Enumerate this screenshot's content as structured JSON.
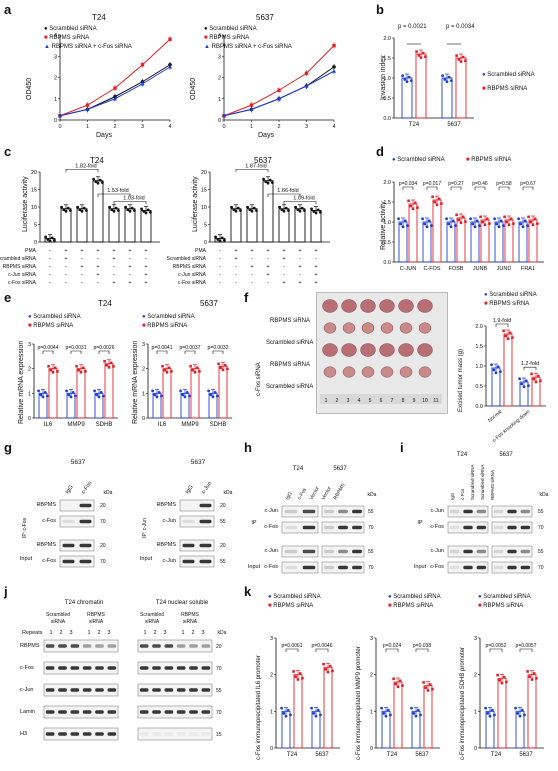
{
  "panels": {
    "a": {
      "letter": "a",
      "titles": [
        "T24",
        "5637"
      ],
      "legend": [
        "Scrambled siRNA",
        "RBPMS siRNA",
        "RBPMS siRNA + c-Fos siRNA"
      ],
      "ylabel": "OD450",
      "xlabel": "Days",
      "xticks": [
        "0",
        "1",
        "2",
        "3",
        "4"
      ],
      "yticks": [
        "0",
        "1",
        "2",
        "3",
        "4"
      ]
    },
    "b": {
      "letter": "b",
      "p_values": [
        "p = 0.0021",
        "p = 0.0034"
      ],
      "ylabel": "Invasion index",
      "categories": [
        "T24",
        "5637"
      ],
      "legend": [
        "Scrambled siRNA",
        "RBPMS siRNA"
      ],
      "yticks": [
        "0.0",
        "0.5",
        "1.0",
        "1.5",
        "2.0"
      ]
    },
    "c": {
      "letter": "c",
      "titles": [
        "T24",
        "5637"
      ],
      "ylabel": "Luciferase activity",
      "yticks": [
        "0",
        "5",
        "10",
        "15",
        "20"
      ],
      "folds_left": [
        "1.82-fold",
        "1.53-fold",
        "1.03-fold"
      ],
      "folds_right": [
        "1.87-fold",
        "1.66-fold",
        "1.09-fold"
      ],
      "row_labels": [
        "PMA",
        "Scrambled siRNA",
        "RBPMS siRNA",
        "c-Jun siRNA",
        "c-Fos siRNA"
      ]
    },
    "d": {
      "letter": "d",
      "legend": [
        "Scrambled siRNA",
        "RBPMS siRNA"
      ],
      "ylabel": "Relative activity",
      "categories": [
        "C-JUN",
        "C-FOS",
        "FOSB",
        "JUNB",
        "JUND",
        "FRA1"
      ],
      "p_values": [
        "p=0.034",
        "p=0.017",
        "p=0.27",
        "p=0.46",
        "p=0.58",
        "p=0.67"
      ],
      "yticks": [
        "0.0",
        "0.5",
        "1.0",
        "1.5",
        "2.0"
      ]
    },
    "e": {
      "letter": "e",
      "titles": [
        "T24",
        "5637"
      ],
      "legend": [
        "Scrambled siRNA",
        "RBPMS siRNA"
      ],
      "ylabel": "Relative mRNA expression",
      "categories": [
        "IL6",
        "MMP9",
        "SDHB"
      ],
      "p_left": [
        "p=0.0044",
        "p=0.0031",
        "p=0.0026"
      ],
      "p_right": [
        "p=0.0041",
        "p=0.0037",
        "p=0.0032"
      ],
      "yticks": [
        "0",
        "1",
        "2",
        "3"
      ]
    },
    "f": {
      "letter": "f",
      "row_labels": [
        "RBPMS siRNA",
        "Scrambled siRNA",
        "RBPMS siRNA",
        "Scrambled siRNA"
      ],
      "side_label": "c-Fos siRNA",
      "legend": [
        "Scrambled siRNA",
        "RBPMS siRNA"
      ],
      "ylabel": "Excised tumor mass (g)",
      "folds": [
        "1.9-fold",
        "1.2-fold"
      ],
      "categories": [
        "Normal",
        "c-Fos knocking down"
      ],
      "yticks": [
        "0.0",
        "0.5",
        "1.0",
        "1.5",
        "2.0"
      ],
      "ruler": [
        "1",
        "2",
        "3",
        "4",
        "5",
        "6",
        "7",
        "8",
        "9",
        "10",
        "11"
      ]
    },
    "g": {
      "letter": "g",
      "cell": [
        "5637",
        "5637"
      ],
      "ip_left": "IP: c-Fos",
      "ip_right": "IP: c-Jun",
      "lanes_left": [
        "IgG",
        "c-Fos"
      ],
      "lanes_right": [
        "IgG",
        "c-Jun"
      ],
      "kda": "kDa",
      "rows_left": [
        "RBPMS",
        "c-Fos",
        "RBPMS",
        "c-Fos"
      ],
      "rows_right": [
        "RBPMS",
        "c-Jun",
        "RBPMS",
        "c-Jun"
      ],
      "mw_left": [
        "20",
        "70",
        "20",
        "70"
      ],
      "mw_right": [
        "20",
        "55",
        "20",
        "55"
      ],
      "input": "Input"
    },
    "h": {
      "letter": "h",
      "cells": [
        "T24",
        "5637"
      ],
      "lanes": [
        "IgG",
        "c-Fos",
        "Vector",
        "Vector",
        "RBPMS"
      ],
      "kda": "kDa",
      "ip": "IP",
      "input": "Input",
      "rows": [
        "c-Jun",
        "c-Fos",
        "c-Jun",
        "c-Fos"
      ],
      "mw": [
        "55",
        "70",
        "55",
        "70"
      ]
    },
    "i": {
      "letter": "i",
      "cells": [
        "T24",
        "5637"
      ],
      "lanes": [
        "IgG",
        "c-Fos",
        "Scrambled siRNA",
        "Scrambled siRNA",
        "RBPMS siRNA"
      ],
      "kda": "kDa",
      "ip": "IP",
      "input": "Input",
      "rows": [
        "c-Jun",
        "c-Fos",
        "c-Jun",
        "c-Fos"
      ],
      "mw": [
        "55",
        "70",
        "55",
        "70"
      ]
    },
    "j": {
      "letter": "j",
      "titles": [
        "T24 chromatin",
        "T24 nuclear soluble"
      ],
      "groups": [
        "Scrambled siRNA",
        "RBPMS siRNA",
        "Scrambled siRNA",
        "RBPMS siRNA"
      ],
      "repeats": "Repeats",
      "repeat_nums": [
        "1",
        "2",
        "3"
      ],
      "rows": [
        "RBPMS",
        "c-Fos",
        "c-Jun",
        "Lamin",
        "H3"
      ],
      "mw": [
        "20",
        "70",
        "55",
        "70",
        "15"
      ],
      "kda": "kDa"
    },
    "k": {
      "letter": "k",
      "legend": [
        "Scrambled siRNA",
        "RBPMS siRNA"
      ],
      "ylabels": [
        "c-Fos immunoprecipitated IL6 promoter",
        "c-Fos immunoprecipitated MMP9 promoter",
        "c-Fos immunoprecipitated SDHB promoter"
      ],
      "categories": [
        "T24",
        "5637"
      ],
      "p1": [
        "p=0.0061",
        "p=0.0046"
      ],
      "p2": [
        "p=0.024",
        "p=0.038"
      ],
      "p3": [
        "p=0.0052",
        "p=0.0057"
      ],
      "yticks": [
        "0",
        "1",
        "2",
        "3"
      ]
    }
  },
  "colors": {
    "blue": "#1f3fd6",
    "red": "#e0232b",
    "black": "#111111"
  },
  "chart_data": [
    {
      "type": "line",
      "title": "T24",
      "xlabel": "Days",
      "ylabel": "OD450",
      "x": [
        0,
        1,
        2,
        3,
        4
      ],
      "ylim": [
        0,
        4
      ],
      "series": [
        {
          "name": "Scrambled siRNA",
          "values": [
            0.2,
            0.5,
            1.1,
            1.8,
            2.6
          ]
        },
        {
          "name": "RBPMS siRNA",
          "values": [
            0.2,
            0.7,
            1.5,
            2.6,
            3.8
          ]
        },
        {
          "name": "RBPMS siRNA + c-Fos siRNA",
          "values": [
            0.2,
            0.5,
            1.0,
            1.7,
            2.5
          ]
        }
      ]
    },
    {
      "type": "line",
      "title": "5637",
      "xlabel": "Days",
      "ylabel": "OD450",
      "x": [
        0,
        1,
        2,
        3,
        4
      ],
      "ylim": [
        0,
        4
      ],
      "series": [
        {
          "name": "Scrambled siRNA",
          "values": [
            0.2,
            0.5,
            1.0,
            1.6,
            2.5
          ]
        },
        {
          "name": "RBPMS siRNA",
          "values": [
            0.2,
            0.7,
            1.4,
            2.2,
            3.5
          ]
        },
        {
          "name": "RBPMS siRNA + c-Fos siRNA",
          "values": [
            0.2,
            0.5,
            1.0,
            1.6,
            2.3
          ]
        }
      ]
    },
    {
      "type": "bar",
      "ylabel": "Invasion index",
      "categories": [
        "T24",
        "5637"
      ],
      "ylim": [
        0,
        2
      ],
      "series": [
        {
          "name": "Scrambled siRNA",
          "values": [
            1.0,
            1.0
          ]
        },
        {
          "name": "RBPMS siRNA",
          "values": [
            1.6,
            1.5
          ]
        }
      ]
    },
    {
      "type": "bar",
      "title": "T24",
      "ylabel": "Luciferase activity",
      "ylim": [
        0,
        20
      ],
      "values": [
        1,
        9.5,
        9.5,
        17.5,
        9.5,
        9.5,
        9
      ]
    },
    {
      "type": "bar",
      "title": "5637",
      "ylabel": "Luciferase activity",
      "ylim": [
        0,
        20
      ],
      "values": [
        1,
        9.5,
        9.5,
        17.5,
        9.5,
        9.5,
        9
      ]
    },
    {
      "type": "bar",
      "ylabel": "Relative activity",
      "categories": [
        "C-JUN",
        "C-FOS",
        "FOSB",
        "JUNB",
        "JUND",
        "FRA1"
      ],
      "ylim": [
        0,
        2
      ],
      "series": [
        {
          "name": "Scrambled siRNA",
          "values": [
            1.0,
            1.0,
            1.0,
            1.0,
            1.0,
            1.0
          ]
        },
        {
          "name": "RBPMS siRNA",
          "values": [
            1.45,
            1.55,
            1.1,
            1.05,
            1.05,
            1.05
          ]
        }
      ]
    },
    {
      "type": "bar",
      "title": "T24",
      "ylabel": "Relative mRNA expression",
      "categories": [
        "IL6",
        "MMP9",
        "SDHB"
      ],
      "ylim": [
        0,
        3
      ],
      "series": [
        {
          "name": "Scrambled siRNA",
          "values": [
            1.0,
            1.0,
            1.0
          ]
        },
        {
          "name": "RBPMS siRNA",
          "values": [
            2.0,
            2.0,
            2.2
          ]
        }
      ]
    },
    {
      "type": "bar",
      "title": "5637",
      "ylabel": "Relative mRNA expression",
      "categories": [
        "IL6",
        "MMP9",
        "SDHB"
      ],
      "ylim": [
        0,
        3
      ],
      "series": [
        {
          "name": "Scrambled siRNA",
          "values": [
            1.0,
            1.0,
            1.0
          ]
        },
        {
          "name": "RBPMS siRNA",
          "values": [
            2.0,
            2.0,
            2.1
          ]
        }
      ]
    },
    {
      "type": "bar",
      "ylabel": "Excised tumor mass (g)",
      "categories": [
        "Normal",
        "c-Fos knocking down"
      ],
      "ylim": [
        0,
        2
      ],
      "series": [
        {
          "name": "Scrambled siRNA",
          "values": [
            0.95,
            0.6
          ]
        },
        {
          "name": "RBPMS siRNA",
          "values": [
            1.8,
            0.72
          ]
        }
      ]
    },
    {
      "type": "bar",
      "ylabel": "c-Fos immunoprecipitated IL6 promoter",
      "categories": [
        "T24",
        "5637"
      ],
      "ylim": [
        0,
        3
      ],
      "series": [
        {
          "name": "Scrambled siRNA",
          "values": [
            1.0,
            1.0
          ]
        },
        {
          "name": "RBPMS siRNA",
          "values": [
            2.0,
            2.2
          ]
        }
      ]
    },
    {
      "type": "bar",
      "ylabel": "c-Fos immunoprecipitated MMP9 promoter",
      "categories": [
        "T24",
        "5637"
      ],
      "ylim": [
        0,
        3
      ],
      "series": [
        {
          "name": "Scrambled siRNA",
          "values": [
            1.0,
            1.0
          ]
        },
        {
          "name": "RBPMS siRNA",
          "values": [
            1.8,
            1.7
          ]
        }
      ]
    },
    {
      "type": "bar",
      "ylabel": "c-Fos immunoprecipitated SDHB promoter",
      "categories": [
        "T24",
        "5637"
      ],
      "ylim": [
        0,
        3
      ],
      "series": [
        {
          "name": "Scrambled siRNA",
          "values": [
            1.0,
            1.0
          ]
        },
        {
          "name": "RBPMS siRNA",
          "values": [
            1.9,
            2.0
          ]
        }
      ]
    }
  ]
}
